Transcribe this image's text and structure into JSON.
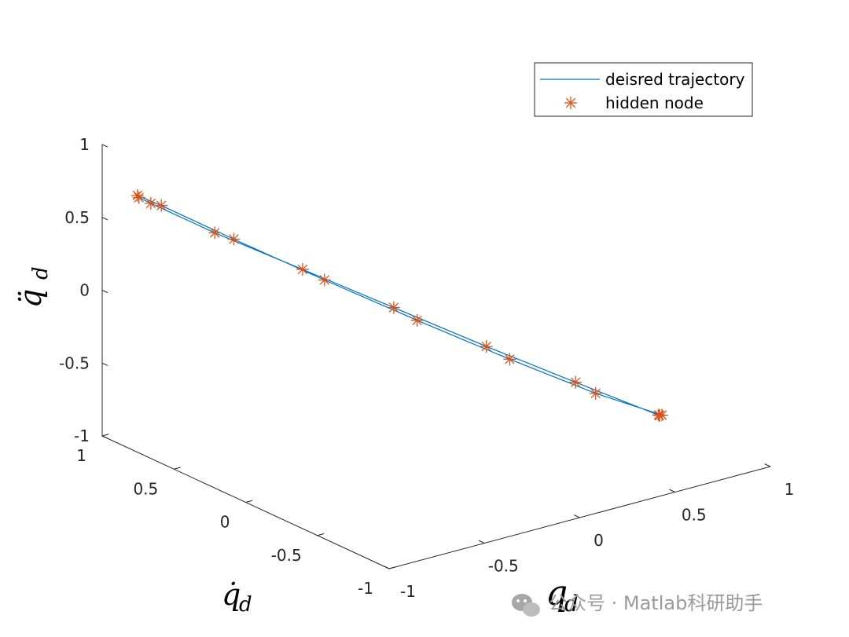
{
  "chart_data": {
    "type": "line3d",
    "view": "3d-perspective",
    "xlabel_symbol": "q",
    "xlabel_sub": "d",
    "ylabel_symbol": "q̇",
    "ylabel_sub": "d",
    "zlabel_symbol": "q̈",
    "zlabel_sub": "d",
    "xlim": [
      -1,
      1
    ],
    "ylim": [
      -1,
      1
    ],
    "zlim": [
      -1,
      1
    ],
    "x_ticks": [
      -1,
      -0.5,
      0,
      0.5,
      1
    ],
    "x_tick_labels": [
      "-1",
      "-0.5",
      "0",
      "0.5",
      "1"
    ],
    "y_ticks": [
      -1,
      -0.5,
      0,
      0.5,
      1
    ],
    "y_tick_labels": [
      "-1",
      "-0.5",
      "0",
      "0.5",
      "1"
    ],
    "z_ticks": [
      -1,
      -0.5,
      0,
      0.5,
      1
    ],
    "z_tick_labels": [
      "-1",
      "-0.5",
      "0",
      "0.5",
      "1"
    ],
    "grid": false,
    "legend_position": "top-right",
    "series": [
      {
        "name": "deisred trajectory",
        "kind": "line",
        "color": "#0072BD",
        "x": [
          0.8,
          0.81,
          0.55,
          0.27,
          -0.02,
          -0.31,
          -0.59,
          -0.79,
          -0.83,
          -0.83,
          -0.75,
          -0.52,
          -0.24,
          0.05,
          0.34,
          0.61,
          0.8
        ],
        "y": [
          -0.51,
          -0.48,
          -0.24,
          0.01,
          0.27,
          0.52,
          0.76,
          0.94,
          0.97,
          0.98,
          0.92,
          0.72,
          0.46,
          0.2,
          -0.06,
          -0.3,
          -0.51
        ],
        "z": [
          -0.8,
          -0.82,
          -0.61,
          -0.38,
          -0.13,
          0.12,
          0.36,
          0.55,
          0.59,
          0.6,
          0.53,
          0.31,
          0.05,
          -0.21,
          -0.46,
          -0.68,
          -0.8
        ]
      },
      {
        "name": "hidden  node",
        "kind": "markers",
        "marker": "*",
        "color": "#D95319",
        "points": [
          [
            0.8,
            -0.51,
            -0.8
          ],
          [
            0.79,
            -0.5,
            -0.8
          ],
          [
            0.81,
            -0.48,
            -0.82
          ],
          [
            0.55,
            -0.24,
            -0.61
          ],
          [
            0.27,
            0.01,
            -0.38
          ],
          [
            -0.02,
            0.27,
            -0.13
          ],
          [
            -0.31,
            0.52,
            0.12
          ],
          [
            -0.59,
            0.76,
            0.36
          ],
          [
            -0.79,
            0.94,
            0.55
          ],
          [
            -0.83,
            0.97,
            0.59
          ],
          [
            -0.83,
            0.98,
            0.6
          ],
          [
            -0.75,
            0.92,
            0.53
          ],
          [
            -0.52,
            0.72,
            0.31
          ],
          [
            -0.24,
            0.46,
            0.05
          ],
          [
            0.05,
            0.2,
            -0.21
          ],
          [
            0.34,
            -0.06,
            -0.46
          ],
          [
            0.61,
            -0.3,
            -0.68
          ]
        ]
      }
    ]
  },
  "watermark": {
    "text": "公众号 · Matlab科研助手",
    "icon": "wechat-icon",
    "color": "#9a9a9a"
  }
}
